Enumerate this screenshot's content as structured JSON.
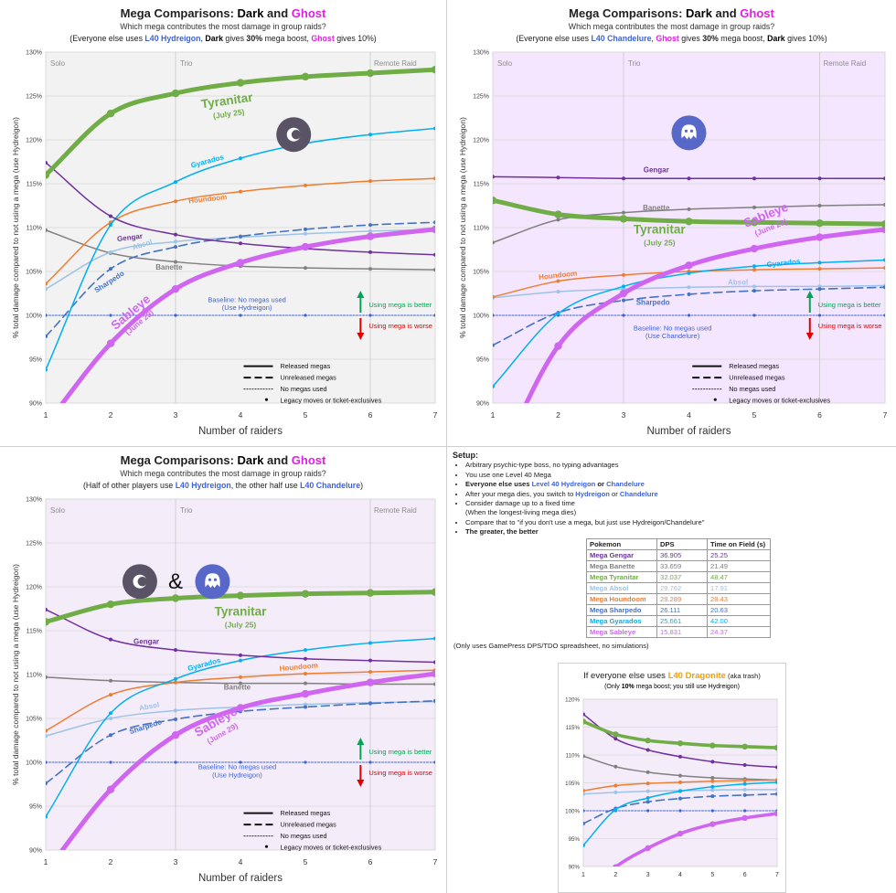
{
  "colors": {
    "Gengar": "#7030a0",
    "Banette": "#808080",
    "Tyranitar": "#70ad47",
    "Absol": "#9dc3e6",
    "Houndoom": "#ed7d31",
    "Sharpedo": "#4472c4",
    "Gyarados": "#00b0f0",
    "Sableye": "#d066f0",
    "Dark": "#000000",
    "Ghost": "#e020e0",
    "HighlightBlue": "#3d63d6",
    "Dragonite": "#f0a000",
    "BaselineBlue": "#3d63d6",
    "Better": "#00a651",
    "Worse": "#e00000"
  },
  "x_values": [
    1,
    2,
    3,
    4,
    5,
    6,
    7
  ],
  "y_ticks": [
    "90%",
    "95%",
    "100%",
    "105%",
    "110%",
    "115%",
    "120%",
    "125%",
    "130%"
  ],
  "x_label": "Number of raiders",
  "y_label": "% total damage compared to not using a mega (use Hydreigon)",
  "chart_data": [
    {
      "type": "line",
      "title": {
        "prefix": "Mega Comparisons: ",
        "dark": "Dark",
        "and": " and ",
        "ghost": "Ghost"
      },
      "subtitle": "Which mega contributes the most damage in group raids?",
      "note": {
        "p1": "(Everyone else uses ",
        "p2": "L40 Hydreigon",
        "p3": ", ",
        "p4": "Dark",
        "p5": " gives ",
        "p6": "30%",
        "p7": " mega boost, ",
        "p8": "Ghost",
        "p9": " gives 10%)"
      },
      "regions": [
        "Solo",
        "Trio",
        "Remote Raid"
      ],
      "xlabel": "Number of raiders",
      "ylabel": "% total damage compared to not using a mega (use Hydreigon)",
      "ylim": [
        90,
        130
      ],
      "background": "#f2f2f2",
      "icon": "dark-type-icon",
      "series": [
        {
          "name": "Tyranitar",
          "values": [
            116,
            123,
            125.3,
            126.5,
            127.2,
            127.6,
            128
          ]
        },
        {
          "name": "Gyarados",
          "values": [
            93.8,
            110.3,
            115.2,
            117.9,
            119.6,
            120.6,
            121.3
          ]
        },
        {
          "name": "Houndoom",
          "values": [
            103.6,
            110.6,
            113.0,
            114.1,
            114.8,
            115.3,
            115.6
          ]
        },
        {
          "name": "Gengar",
          "values": [
            117.4,
            111.3,
            109.2,
            108.2,
            107.6,
            107.2,
            106.9
          ]
        },
        {
          "name": "Absol",
          "values": [
            103.0,
            107.2,
            108.4,
            108.9,
            109.3,
            109.6,
            109.8
          ]
        },
        {
          "name": "Sharpedo",
          "values": [
            97.6,
            105.3,
            107.8,
            109.0,
            109.8,
            110.3,
            110.6
          ]
        },
        {
          "name": "Banette",
          "values": [
            109.7,
            107.1,
            106.1,
            105.6,
            105.4,
            105.3,
            105.2
          ]
        },
        {
          "name": "Sableye",
          "values": [
            87.5,
            96.8,
            103.0,
            106.0,
            107.8,
            109.0,
            109.8
          ]
        },
        {
          "name": "Baseline",
          "values": [
            100,
            100,
            100,
            100,
            100,
            100,
            100
          ]
        }
      ],
      "labels": {
        "Tyranitar": "Tyranitar",
        "Tyranitar_date": "(July 25)",
        "Gyarados": "Gyarados",
        "Houndoom": "Houndoom",
        "Gengar": "Gengar",
        "Absol": "Absol",
        "Sharpedo": "Sharpedo",
        "Banette": "Banette",
        "Sableye": "Sableye",
        "Sableye_date": "(June 29)",
        "Baseline1": "Baseline: No megas used",
        "Baseline2": "(Use Hydreigon)",
        "Better": "Using mega is better",
        "Worse": "Using mega is worse"
      },
      "legend": [
        "Released megas",
        "Unreleased megas",
        "No megas used",
        "Legacy moves or ticket-exclusives"
      ]
    },
    {
      "type": "line",
      "title": {
        "prefix": "Mega Comparisons: ",
        "dark": "Dark",
        "and": " and ",
        "ghost": "Ghost"
      },
      "subtitle": "Which mega contributes the most damage in group raids?",
      "note": {
        "p1": "(Everyone else uses ",
        "p2": "L40 Chandelure",
        "p3": ", ",
        "p4": "Ghost",
        "p5": " gives ",
        "p6": "30%",
        "p7": " mega boost, ",
        "p8": "Dark",
        "p9": " gives 10%)"
      },
      "regions": [
        "Solo",
        "Trio",
        "Remote Raid"
      ],
      "xlabel": "Number of raiders",
      "ylabel": "% total damage compared to not using a mega (use Hydreigon)",
      "ylim": [
        90,
        130
      ],
      "background": "#f5e6ff",
      "icon": "ghost-type-icon",
      "series": [
        {
          "name": "Gengar",
          "values": [
            115.8,
            115.7,
            115.6,
            115.6,
            115.6,
            115.6,
            115.6
          ]
        },
        {
          "name": "Banette",
          "values": [
            108.3,
            110.9,
            111.7,
            112.1,
            112.3,
            112.5,
            112.6
          ]
        },
        {
          "name": "Tyranitar",
          "values": [
            113.1,
            111.5,
            111.0,
            110.7,
            110.6,
            110.5,
            110.4
          ]
        },
        {
          "name": "Sableye",
          "values": [
            82.0,
            96.5,
            102.5,
            105.7,
            107.6,
            108.9,
            109.8
          ]
        },
        {
          "name": "Houndoom",
          "values": [
            102.1,
            103.9,
            104.6,
            105.0,
            105.2,
            105.3,
            105.4
          ]
        },
        {
          "name": "Gyarados",
          "values": [
            91.9,
            100.2,
            103.3,
            104.8,
            105.6,
            106.0,
            106.3
          ]
        },
        {
          "name": "Absol",
          "values": [
            102.0,
            102.7,
            103.0,
            103.2,
            103.3,
            103.3,
            103.4
          ]
        },
        {
          "name": "Sharpedo",
          "values": [
            96.6,
            100.3,
            101.7,
            102.4,
            102.8,
            103.0,
            103.2
          ]
        },
        {
          "name": "Baseline",
          "values": [
            100,
            100,
            100,
            100,
            100,
            100,
            100
          ]
        }
      ],
      "labels": {
        "Tyranitar": "Tyranitar",
        "Tyranitar_date": "(July 25)",
        "Gyarados": "Gyarados",
        "Houndoom": "Houndoom",
        "Gengar": "Gengar",
        "Absol": "Absol",
        "Sharpedo": "Sharpedo",
        "Banette": "Banette",
        "Sableye": "Sableye",
        "Sableye_date": "(June 29)",
        "Baseline1": "Baseline: No megas used",
        "Baseline2": "(Use Chandelure)",
        "Better": "Using mega is better",
        "Worse": "Using mega is worse"
      },
      "legend": [
        "Released megas",
        "Unreleased megas",
        "No megas used",
        "Legacy moves or ticket-exclusives"
      ]
    },
    {
      "type": "line",
      "title": {
        "prefix": "Mega Comparisons: ",
        "dark": "Dark",
        "and": " and ",
        "ghost": "Ghost"
      },
      "subtitle": "Which mega contributes the most damage in group raids?",
      "note": {
        "p1": "(Half of other players use ",
        "p2": "L40 Hydreigon",
        "p3": ", the other half use ",
        "p4": "L40 Chandelure",
        "p5": ")",
        "p6": "",
        "p7": "",
        "p8": "",
        "p9": ""
      },
      "regions": [
        "Solo",
        "Trio",
        "Remote Raid"
      ],
      "xlabel": "Number of raiders",
      "ylabel": "% total damage compared to not using a mega (use Hydreigon)",
      "ylim": [
        90,
        130
      ],
      "background": "#f5ecfa",
      "icon": "dark-and-ghost-icons",
      "amp": "&",
      "series": [
        {
          "name": "Tyranitar",
          "values": [
            116,
            118.0,
            118.7,
            119.0,
            119.2,
            119.3,
            119.4
          ]
        },
        {
          "name": "Gengar",
          "values": [
            117.4,
            114.0,
            112.8,
            112.2,
            111.8,
            111.6,
            111.4
          ]
        },
        {
          "name": "Gyarados",
          "values": [
            93.8,
            105.6,
            109.5,
            111.6,
            112.8,
            113.6,
            114.1
          ]
        },
        {
          "name": "Houndoom",
          "values": [
            103.6,
            107.7,
            109.1,
            109.7,
            110.1,
            110.3,
            110.5
          ]
        },
        {
          "name": "Banette",
          "values": [
            109.7,
            109.3,
            109.1,
            109.0,
            109.0,
            108.9,
            108.9
          ]
        },
        {
          "name": "Absol",
          "values": [
            103.0,
            105.0,
            105.9,
            106.3,
            106.6,
            106.8,
            106.9
          ]
        },
        {
          "name": "Sharpedo",
          "values": [
            97.6,
            103.1,
            104.9,
            105.8,
            106.3,
            106.7,
            107.0
          ]
        },
        {
          "name": "Sableye",
          "values": [
            87.5,
            96.9,
            103.1,
            106.2,
            107.8,
            109.1,
            110.1
          ]
        },
        {
          "name": "Baseline",
          "values": [
            100,
            100,
            100,
            100,
            100,
            100,
            100
          ]
        }
      ],
      "labels": {
        "Tyranitar": "Tyranitar",
        "Tyranitar_date": "(July 25)",
        "Gyarados": "Gyarados",
        "Houndoom": "Houndoom",
        "Gengar": "Gengar",
        "Absol": "Absol",
        "Sharpedo": "Sharpedo",
        "Banette": "Banette",
        "Sableye": "Sableye",
        "Sableye_date": "(June 29)",
        "Baseline1": "Baseline: No megas used",
        "Baseline2": "(Use Hydreigon)",
        "Better": "Using mega is better",
        "Worse": "Using mega is worse"
      },
      "legend": [
        "Released megas",
        "Unreleased megas",
        "No megas used",
        "Legacy moves or ticket-exclusives"
      ]
    },
    {
      "type": "line",
      "title": {
        "prefix": "If everyone else uses ",
        "highlight": "L40 Dragonite",
        "suffix": " (aka trash)"
      },
      "subtitle": {
        "p1": "(Only ",
        "p2": "10%",
        "p3": " mega boost; you still use Hydreigon)"
      },
      "ylim": [
        90,
        120
      ],
      "y_ticks": [
        "90%",
        "95%",
        "100%",
        "105%",
        "110%",
        "115%",
        "120%"
      ],
      "background": "#f5ecfa",
      "series": [
        {
          "name": "Gengar",
          "values": [
            117.3,
            112.9,
            110.9,
            109.7,
            108.8,
            108.2,
            107.8
          ]
        },
        {
          "name": "Tyranitar",
          "values": [
            116,
            113.7,
            112.6,
            112.1,
            111.7,
            111.5,
            111.3
          ]
        },
        {
          "name": "Banette",
          "values": [
            109.8,
            107.9,
            106.9,
            106.3,
            105.9,
            105.7,
            105.5
          ]
        },
        {
          "name": "Houndoom",
          "values": [
            103.6,
            104.5,
            104.9,
            105.1,
            105.3,
            105.4,
            105.5
          ]
        },
        {
          "name": "Absol",
          "values": [
            103.0,
            103.3,
            103.5,
            103.6,
            103.7,
            103.8,
            103.8
          ]
        },
        {
          "name": "Gyarados",
          "values": [
            93.8,
            100.2,
            102.3,
            103.5,
            104.3,
            104.8,
            105.1
          ]
        },
        {
          "name": "Sharpedo",
          "values": [
            97.7,
            100.4,
            101.6,
            102.2,
            102.6,
            102.8,
            103.0
          ]
        },
        {
          "name": "Sableye",
          "values": [
            84.5,
            89.9,
            93.3,
            95.9,
            97.6,
            98.7,
            99.5
          ]
        },
        {
          "name": "Baseline",
          "values": [
            100,
            100,
            100,
            100,
            100,
            100,
            100
          ]
        }
      ]
    }
  ],
  "setup": {
    "heading": "Setup:",
    "b1": "Arbitrary psychic-type boss, no typing advantages",
    "b2": "You use one Level 40 Mega",
    "b3a": "Everyone else uses ",
    "b3b": "Level 40 Hydreigon",
    "b3c": " or ",
    "b3d": "Chandelure",
    "b4a": "After your mega dies, you switch to ",
    "b4b": "Hydreigon",
    "b4c": " or ",
    "b4d": "Chandelure",
    "b5a": "Consider damage up to a fixed time",
    "b5b": "(When the longest-living mega dies)",
    "b6": "Compare that to \"if you don't use a mega, but just use Hydreigon/Chandelure\"",
    "b7": "The greater, the better"
  },
  "table": {
    "headers": [
      "Pokemon",
      "DPS",
      "Time on Field (s)"
    ],
    "rows": [
      {
        "name": "Mega Gengar",
        "dps": "36.905",
        "time": "25.25",
        "color": "#7030a0"
      },
      {
        "name": "Mega Banette",
        "dps": "33.659",
        "time": "21.49",
        "color": "#808080"
      },
      {
        "name": "Mega Tyranitar",
        "dps": "32.037",
        "time": "48.47",
        "color": "#70ad47"
      },
      {
        "name": "Mega Absol",
        "dps": "29.762",
        "time": "17.91",
        "color": "#9dc3e6"
      },
      {
        "name": "Mega Houndoom",
        "dps": "29.289",
        "time": "28.43",
        "color": "#ed7d31"
      },
      {
        "name": "Mega Sharpedo",
        "dps": "26.111",
        "time": "20.63",
        "color": "#4472c4"
      },
      {
        "name": "Mega Gyarados",
        "dps": "25.661",
        "time": "42.00",
        "color": "#00b0f0"
      },
      {
        "name": "Mega Sableye",
        "dps": "15.831",
        "time": "24.37",
        "color": "#d066f0"
      }
    ]
  },
  "footnote": "(Only uses GamePress DPS/TDO spreadsheet, no simulations)"
}
